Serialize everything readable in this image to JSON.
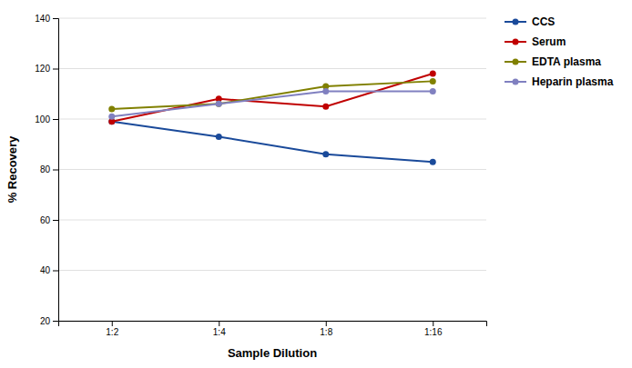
{
  "chart_data": {
    "type": "line",
    "xlabel": "Sample Dilution",
    "ylabel": "% Recovery",
    "categories": [
      "1:2",
      "1:4",
      "1:8",
      "1:16"
    ],
    "series": [
      {
        "name": "CCS",
        "color": "#1a4a9a",
        "marker": "circle",
        "values": [
          99,
          93,
          86,
          83
        ]
      },
      {
        "name": "Serum",
        "color": "#c00000",
        "marker": "circle",
        "values": [
          99,
          108,
          105,
          118
        ]
      },
      {
        "name": "EDTA plasma",
        "color": "#808000",
        "marker": "circle",
        "values": [
          104,
          106,
          113,
          115
        ]
      },
      {
        "name": "Heparin plasma",
        "color": "#8080c0",
        "marker": "circle",
        "values": [
          101,
          106,
          111,
          111
        ]
      }
    ],
    "ylim": [
      20,
      140
    ],
    "yticks": [
      20,
      40,
      60,
      80,
      100,
      120,
      140
    ],
    "grid": true,
    "legend": "right"
  }
}
